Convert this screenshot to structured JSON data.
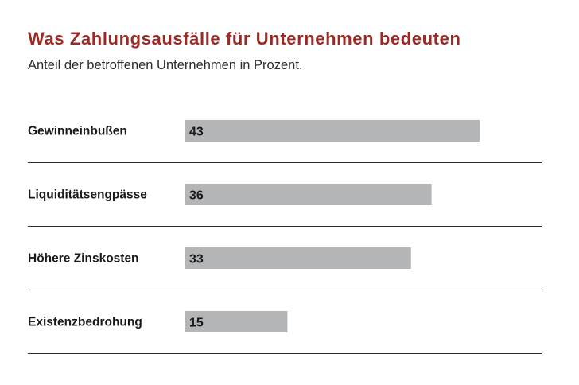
{
  "colors": {
    "title": "#9b2a24",
    "bar": "#b4b5b7",
    "text": "#1a1a1a",
    "rule": "#2a2a2a"
  },
  "chart_data": {
    "type": "bar",
    "orientation": "horizontal",
    "title": "Was Zahlungsausfälle für Unternehmen bedeuten",
    "subtitle": "Anteil der betroffenen Unternehmen in Prozent.",
    "categories": [
      "Gewinneinbußen",
      "Liquiditätsengpässe",
      "Höhere Zinskosten",
      "Existenzbedrohung"
    ],
    "values": [
      43,
      36,
      33,
      15
    ],
    "data_labels": [
      "43",
      "36",
      "33",
      "15"
    ],
    "xlabel": "",
    "ylabel": "",
    "xlim": [
      0,
      50
    ],
    "grid": false,
    "legend": "none"
  }
}
